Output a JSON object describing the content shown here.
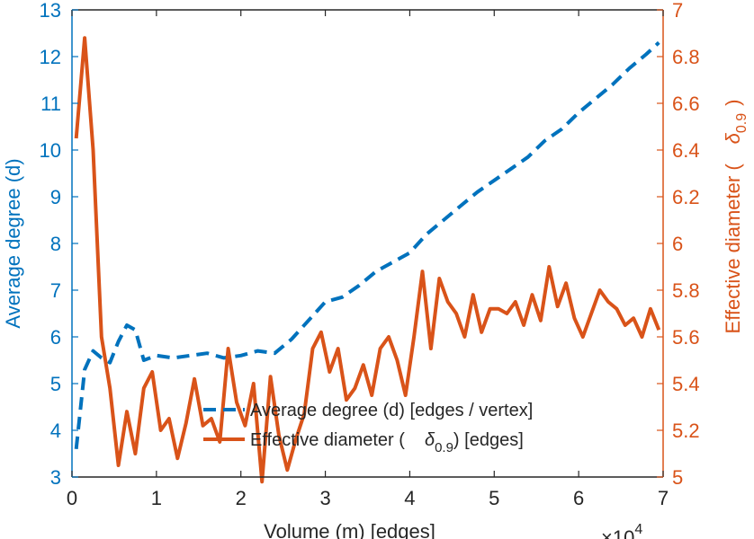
{
  "chart_data": {
    "type": "line",
    "xlabel": "Volume (m) [edges]",
    "x_exponent_label": "×10",
    "x_exponent_power": "4",
    "xlim": [
      0,
      70000
    ],
    "x_ticks": [
      0,
      10000,
      20000,
      30000,
      40000,
      50000,
      60000,
      70000
    ],
    "x_tick_labels": [
      "0",
      "1",
      "2",
      "3",
      "4",
      "5",
      "6",
      "7"
    ],
    "y_left": {
      "label": "Average degree (d)",
      "lim": [
        3,
        13
      ],
      "ticks": [
        3,
        4,
        5,
        6,
        7,
        8,
        9,
        10,
        11,
        12,
        13
      ],
      "color": "#0072BD"
    },
    "y_right": {
      "label_prefix": "Effective diameter (",
      "label_symbol": "δ",
      "label_sub": "0.9",
      "label_suffix": ")",
      "lim": [
        5,
        7
      ],
      "ticks": [
        "5",
        "5.2",
        "5.4",
        "5.6",
        "5.8",
        "6",
        "6.2",
        "6.4",
        "6.6",
        "6.8",
        "7"
      ],
      "color": "#D95319"
    },
    "series": [
      {
        "name": "Average degree (d) [edges / vertex]",
        "axis": "left",
        "style": "dashed",
        "color": "#0072BD",
        "x": [
          500,
          1500,
          2500,
          3500,
          4500,
          5500,
          6500,
          7500,
          8500,
          10000,
          12000,
          14000,
          16000,
          18000,
          20000,
          22000,
          24000,
          26000,
          28000,
          30000,
          32000,
          34000,
          36000,
          38000,
          40000,
          42000,
          44000,
          46000,
          48000,
          50000,
          52000,
          54000,
          56000,
          58000,
          60000,
          62000,
          64000,
          66000,
          68000,
          69500
        ],
        "y": [
          3.6,
          5.3,
          5.7,
          5.55,
          5.45,
          5.9,
          6.25,
          6.15,
          5.5,
          5.6,
          5.55,
          5.6,
          5.65,
          5.55,
          5.6,
          5.7,
          5.65,
          5.95,
          6.35,
          6.75,
          6.85,
          7.1,
          7.4,
          7.6,
          7.8,
          8.2,
          8.5,
          8.8,
          9.1,
          9.35,
          9.6,
          9.85,
          10.2,
          10.45,
          10.8,
          11.1,
          11.4,
          11.75,
          12.05,
          12.3
        ]
      },
      {
        "name_prefix": "Effective diameter (",
        "name_symbol": "δ",
        "name_sub": "0.9",
        "name_suffix": ") [edges]",
        "axis": "right",
        "style": "solid",
        "color": "#D95319",
        "x": [
          500,
          1500,
          2500,
          3500,
          4500,
          5500,
          6500,
          7500,
          8500,
          9500,
          10500,
          11500,
          12500,
          13500,
          14500,
          15500,
          16500,
          17500,
          18500,
          19500,
          20500,
          21500,
          22500,
          23500,
          24500,
          25500,
          26500,
          27500,
          28500,
          29500,
          30500,
          31500,
          32500,
          33500,
          34500,
          35500,
          36500,
          37500,
          38500,
          39500,
          40500,
          41500,
          42500,
          43500,
          44500,
          45500,
          46500,
          47500,
          48500,
          49500,
          50500,
          51500,
          52500,
          53500,
          54500,
          55500,
          56500,
          57500,
          58500,
          59500,
          60500,
          61500,
          62500,
          63500,
          64500,
          65500,
          66500,
          67500,
          68500,
          69500
        ],
        "y": [
          6.45,
          6.88,
          6.4,
          5.6,
          5.38,
          5.05,
          5.28,
          5.1,
          5.38,
          5.45,
          5.2,
          5.25,
          5.08,
          5.23,
          5.42,
          5.22,
          5.25,
          5.15,
          5.55,
          5.32,
          5.22,
          5.4,
          4.98,
          5.43,
          5.18,
          5.03,
          5.16,
          5.27,
          5.55,
          5.62,
          5.45,
          5.55,
          5.33,
          5.38,
          5.48,
          5.35,
          5.55,
          5.6,
          5.5,
          5.35,
          5.6,
          5.88,
          5.55,
          5.85,
          5.75,
          5.7,
          5.6,
          5.78,
          5.62,
          5.72,
          5.72,
          5.7,
          5.75,
          5.65,
          5.78,
          5.67,
          5.9,
          5.73,
          5.83,
          5.68,
          5.6,
          5.7,
          5.8,
          5.75,
          5.72,
          5.65,
          5.68,
          5.6,
          5.72,
          5.63
        ]
      }
    ],
    "legend_position": "lower-center",
    "grid": false
  }
}
